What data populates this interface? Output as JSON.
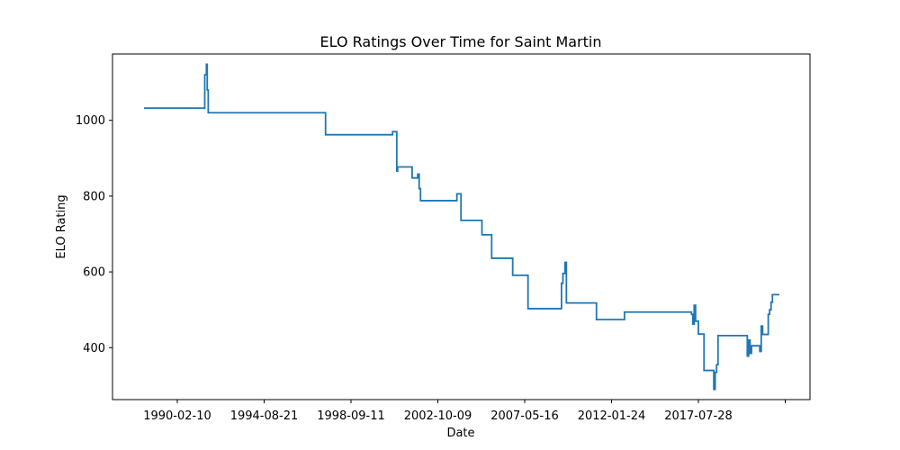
{
  "chart_data": {
    "type": "line",
    "title": "ELO Ratings Over Time for Saint Martin",
    "xlabel": "Date",
    "ylabel": "ELO Rating",
    "x_tick_labels": [
      "1990-02-10",
      "1994-08-21",
      "1998-09-11",
      "2002-10-09",
      "2007-05-16",
      "2012-01-24",
      "2017-07-28"
    ],
    "y_ticks": [
      400,
      600,
      800,
      1000
    ],
    "ylim": [
      263,
      1175
    ],
    "grid": false,
    "color": "#1f77b4",
    "series": [
      {
        "points": [
          [
            "1986-06-01",
            1032
          ],
          [
            "1990-01-15",
            1032
          ],
          [
            "1990-01-15",
            1120
          ],
          [
            "1990-02-20",
            1120
          ],
          [
            "1990-02-20",
            1148
          ],
          [
            "1990-03-10",
            1148
          ],
          [
            "1990-03-10",
            1080
          ],
          [
            "1990-04-01",
            1080
          ],
          [
            "1990-04-01",
            1020
          ],
          [
            "1997-04-01",
            1020
          ],
          [
            "1997-04-01",
            962
          ],
          [
            "2001-04-01",
            962
          ],
          [
            "2001-04-01",
            970
          ],
          [
            "2001-07-01",
            970
          ],
          [
            "2001-07-01",
            866
          ],
          [
            "2001-07-20",
            866
          ],
          [
            "2001-07-20",
            877
          ],
          [
            "2002-06-01",
            877
          ],
          [
            "2002-06-01",
            848
          ],
          [
            "2002-10-01",
            848
          ],
          [
            "2002-10-01",
            858
          ],
          [
            "2002-11-01",
            858
          ],
          [
            "2002-11-01",
            820
          ],
          [
            "2002-12-01",
            820
          ],
          [
            "2002-12-01",
            788
          ],
          [
            "2005-02-01",
            788
          ],
          [
            "2005-02-01",
            806
          ],
          [
            "2005-05-01",
            806
          ],
          [
            "2005-05-01",
            736
          ],
          [
            "2006-08-01",
            736
          ],
          [
            "2006-08-01",
            698
          ],
          [
            "2007-03-01",
            698
          ],
          [
            "2007-03-01",
            636
          ],
          [
            "2008-06-01",
            636
          ],
          [
            "2008-06-01",
            591
          ],
          [
            "2009-05-01",
            591
          ],
          [
            "2009-05-01",
            503
          ],
          [
            "2011-05-01",
            503
          ],
          [
            "2011-05-01",
            570
          ],
          [
            "2011-06-01",
            570
          ],
          [
            "2011-06-01",
            596
          ],
          [
            "2011-07-15",
            596
          ],
          [
            "2011-07-15",
            625
          ],
          [
            "2011-08-15",
            625
          ],
          [
            "2011-08-15",
            518
          ],
          [
            "2013-06-01",
            518
          ],
          [
            "2013-06-01",
            474
          ],
          [
            "2015-02-01",
            474
          ],
          [
            "2015-02-01",
            494
          ],
          [
            "2019-02-01",
            494
          ],
          [
            "2019-02-01",
            488
          ],
          [
            "2019-03-01",
            488
          ],
          [
            "2019-03-01",
            462
          ],
          [
            "2019-04-01",
            462
          ],
          [
            "2019-04-01",
            512
          ],
          [
            "2019-05-01",
            512
          ],
          [
            "2019-05-01",
            470
          ],
          [
            "2019-07-01",
            470
          ],
          [
            "2019-07-01",
            436
          ],
          [
            "2019-11-01",
            436
          ],
          [
            "2019-11-01",
            340
          ],
          [
            "2020-06-01",
            340
          ],
          [
            "2020-06-01",
            290
          ],
          [
            "2020-07-01",
            290
          ],
          [
            "2020-07-01",
            335
          ],
          [
            "2020-08-01",
            335
          ],
          [
            "2020-08-01",
            355
          ],
          [
            "2020-09-01",
            355
          ],
          [
            "2020-09-01",
            432
          ],
          [
            "2022-06-01",
            432
          ],
          [
            "2022-06-01",
            378
          ],
          [
            "2022-07-01",
            378
          ],
          [
            "2022-07-01",
            420
          ],
          [
            "2022-08-01",
            420
          ],
          [
            "2022-08-01",
            385
          ],
          [
            "2022-09-01",
            385
          ],
          [
            "2022-09-01",
            405
          ],
          [
            "2023-03-01",
            405
          ],
          [
            "2023-03-01",
            390
          ],
          [
            "2023-04-01",
            390
          ],
          [
            "2023-04-01",
            457
          ],
          [
            "2023-05-01",
            457
          ],
          [
            "2023-05-01",
            435
          ],
          [
            "2023-09-01",
            435
          ],
          [
            "2023-09-01",
            488
          ],
          [
            "2023-10-01",
            488
          ],
          [
            "2023-10-01",
            500
          ],
          [
            "2023-11-01",
            500
          ],
          [
            "2023-11-01",
            520
          ],
          [
            "2023-12-01",
            520
          ],
          [
            "2023-12-01",
            540
          ],
          [
            "2024-05-01",
            540
          ]
        ]
      }
    ]
  }
}
